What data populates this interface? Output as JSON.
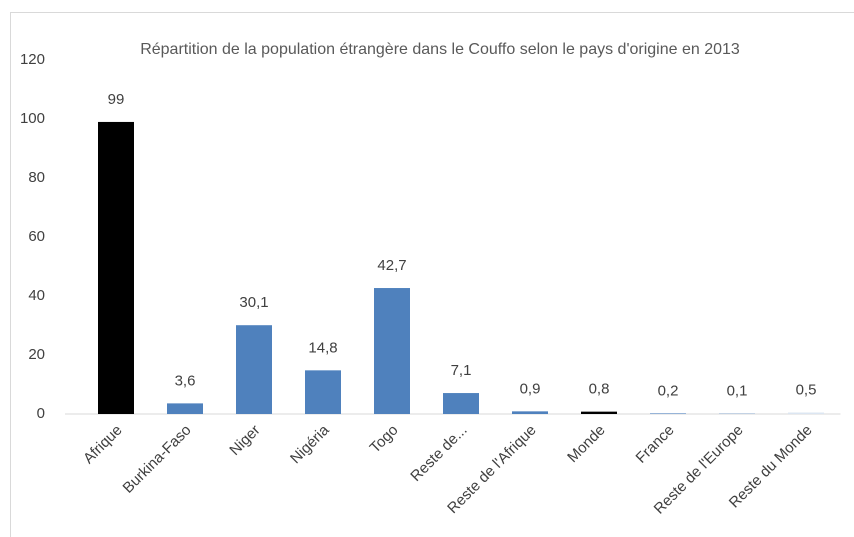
{
  "chart_data": {
    "type": "bar",
    "title": "Répartition de la population étrangère dans le Couffo selon le pays d'origine en 2013",
    "categories": [
      "Afrique",
      "Burkina-Faso",
      "Niger",
      "Nigéria",
      "Togo",
      "Reste de...",
      "Reste de l'Afrique",
      "Monde",
      "France",
      "Reste de l'Europe",
      "Reste du Monde"
    ],
    "values": [
      99,
      3.6,
      30.1,
      14.8,
      42.7,
      7.1,
      0.9,
      0.8,
      0.2,
      0.1,
      0.5
    ],
    "value_labels": [
      "99",
      "3,6",
      "30,1",
      "14,8",
      "42,7",
      "7,1",
      "0,9",
      "0,8",
      "0,2",
      "0,1",
      "0,5"
    ],
    "colors": [
      "#000000",
      "#4f81bd",
      "#4f81bd",
      "#4f81bd",
      "#4f81bd",
      "#4f81bd",
      "#4f81bd",
      "#000000",
      "#4f81bd",
      "#4f81bd",
      "#dce6f2"
    ],
    "ylim": [
      0,
      120
    ],
    "yticks": [
      0,
      20,
      40,
      60,
      80,
      100,
      120
    ],
    "grid": false
  }
}
